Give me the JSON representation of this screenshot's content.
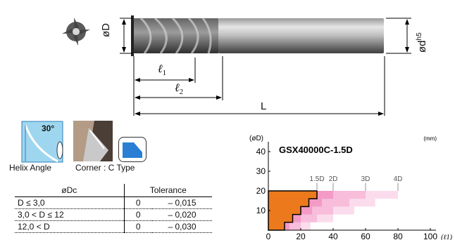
{
  "tool_drawing": {
    "dim_D": "øD",
    "dim_d": "ød",
    "dim_d_sup": "h5",
    "dim_l1": "ℓ",
    "dim_l1_sub": "1",
    "dim_l2": "ℓ",
    "dim_l2_sub": "2",
    "dim_L": "L"
  },
  "features": {
    "helix_angle_value": "30°",
    "helix_angle_label": "Helix Angle",
    "corner_label": "Corner : C Type"
  },
  "tolerance_table": {
    "headers": [
      "øDc",
      "Tolerance"
    ],
    "rows": [
      {
        "range": "D ≤ 3,0",
        "zero": "0",
        "value": "– 0,015"
      },
      {
        "range": "3,0 < D ≤ 12",
        "zero": "0",
        "value": "– 0,020"
      },
      {
        "range": "12,0 < D",
        "zero": "0",
        "value": "– 0,030"
      }
    ]
  },
  "chart_data": {
    "type": "heatmap",
    "title": "GSX40000C-1.5D",
    "unit": "(mm)",
    "ylabel": "(øD)",
    "xlabel": "(ℓ1)",
    "x_ticks": [
      0,
      20,
      40,
      60,
      80,
      100
    ],
    "y_ticks": [
      10,
      20,
      30,
      40
    ],
    "xlim": [
      0,
      100
    ],
    "ylim": [
      0,
      45
    ],
    "series_labels": [
      {
        "name": "1.5D",
        "x": 30
      },
      {
        "name": "2D",
        "x": 40
      },
      {
        "name": "3D",
        "x": 60
      },
      {
        "name": "4D",
        "x": 80
      }
    ],
    "regions": [
      {
        "name": "1.5D",
        "color": "#ec7a1c",
        "steps": [
          [
            0,
            0
          ],
          [
            0,
            20
          ],
          [
            30,
            20
          ],
          [
            30,
            16
          ],
          [
            25,
            16
          ],
          [
            25,
            12
          ],
          [
            20,
            12
          ],
          [
            20,
            8
          ],
          [
            15,
            8
          ],
          [
            15,
            4
          ],
          [
            10,
            4
          ],
          [
            10,
            0
          ]
        ]
      },
      {
        "name": "2D",
        "color": "#f39ac6",
        "steps": [
          [
            0,
            0
          ],
          [
            0,
            20
          ],
          [
            40,
            20
          ],
          [
            40,
            16
          ],
          [
            33,
            16
          ],
          [
            33,
            12
          ],
          [
            27,
            12
          ],
          [
            27,
            8
          ],
          [
            20,
            8
          ],
          [
            20,
            4
          ],
          [
            13,
            4
          ],
          [
            13,
            0
          ]
        ]
      },
      {
        "name": "3D",
        "color": "#f7bddb",
        "steps": [
          [
            0,
            0
          ],
          [
            0,
            20
          ],
          [
            60,
            20
          ],
          [
            60,
            16
          ],
          [
            50,
            16
          ],
          [
            50,
            12
          ],
          [
            40,
            12
          ],
          [
            40,
            8
          ],
          [
            30,
            8
          ],
          [
            30,
            4
          ],
          [
            20,
            4
          ],
          [
            20,
            0
          ]
        ]
      },
      {
        "name": "4D",
        "color": "#fbdcec",
        "steps": [
          [
            0,
            0
          ],
          [
            0,
            20
          ],
          [
            80,
            20
          ],
          [
            80,
            16
          ],
          [
            66,
            16
          ],
          [
            66,
            12
          ],
          [
            53,
            12
          ],
          [
            53,
            8
          ],
          [
            40,
            8
          ],
          [
            40,
            4
          ],
          [
            26,
            4
          ],
          [
            26,
            0
          ]
        ]
      }
    ]
  }
}
